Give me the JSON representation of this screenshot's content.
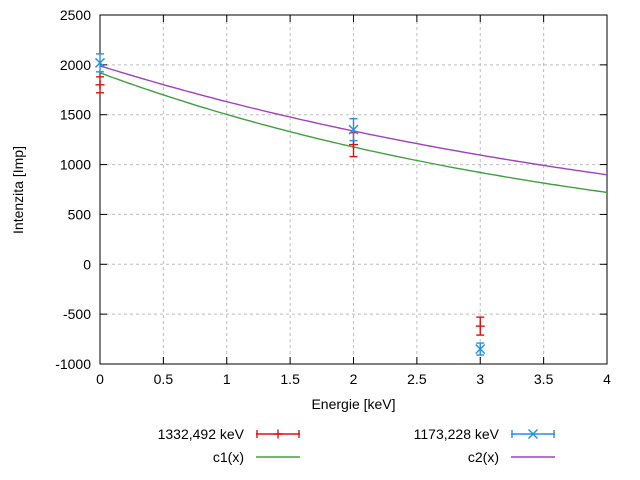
{
  "chart_data": {
    "type": "line",
    "title": "",
    "xlabel": "Energie [keV]",
    "ylabel": "Intenzita [Imp]",
    "xlim": [
      0,
      4
    ],
    "ylim": [
      -1000,
      2500
    ],
    "xticks": [
      {
        "v": 0,
        "label": "0"
      },
      {
        "v": 0.5,
        "label": "0.5"
      },
      {
        "v": 1,
        "label": "1"
      },
      {
        "v": 1.5,
        "label": "1.5"
      },
      {
        "v": 2,
        "label": "2"
      },
      {
        "v": 2.5,
        "label": "2.5"
      },
      {
        "v": 3,
        "label": "3"
      },
      {
        "v": 3.5,
        "label": "3.5"
      },
      {
        "v": 4,
        "label": "4"
      }
    ],
    "yticks": [
      {
        "v": -1000,
        "label": "-1000"
      },
      {
        "v": -500,
        "label": "-500"
      },
      {
        "v": 0,
        "label": "0"
      },
      {
        "v": 500,
        "label": "500"
      },
      {
        "v": 1000,
        "label": "1000"
      },
      {
        "v": 1500,
        "label": "1500"
      },
      {
        "v": 2000,
        "label": "2000"
      },
      {
        "v": 2500,
        "label": "2500"
      }
    ],
    "grid": true,
    "legend_position": "below-center",
    "series": [
      {
        "name": "1332,492 keV",
        "kind": "points",
        "marker": "plus",
        "color": "#e01010",
        "points": [
          {
            "x": 0,
            "y": 1800,
            "err": 80
          },
          {
            "x": 2,
            "y": 1200,
            "err": 120
          },
          {
            "x": 3,
            "y": -620,
            "err": 90
          }
        ]
      },
      {
        "name": "1173,228 keV",
        "kind": "points",
        "marker": "x",
        "color": "#2090e8",
        "points": [
          {
            "x": 0,
            "y": 2020,
            "err": 90
          },
          {
            "x": 2,
            "y": 1350,
            "err": 110
          },
          {
            "x": 3,
            "y": -850,
            "err": 60
          }
        ]
      },
      {
        "name": "c1(x)",
        "kind": "curve",
        "model": "a*exp(-b*x)",
        "a": 1920,
        "b": 0.245,
        "color": "#40a040"
      },
      {
        "name": "c2(x)",
        "kind": "curve",
        "model": "a*exp(-b*x)",
        "a": 1990,
        "b": 0.199,
        "color": "#a040c0"
      }
    ]
  }
}
